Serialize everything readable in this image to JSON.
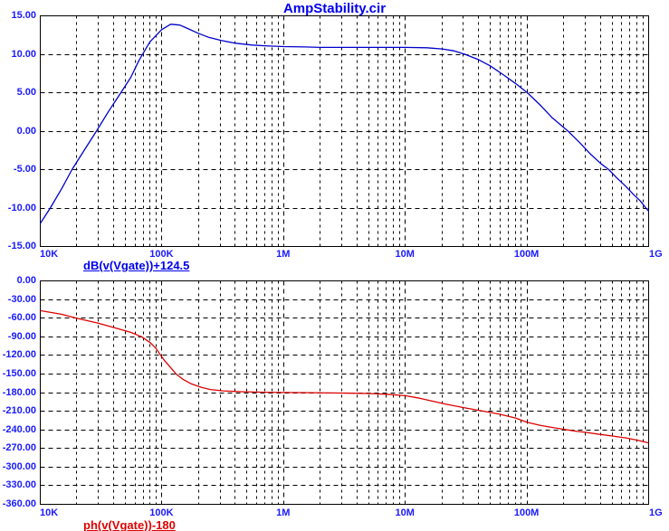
{
  "title": "AmpStability.cir",
  "colors": {
    "title": "#0000ee",
    "tick_label": "#1a1aff",
    "grid": "#000000",
    "plot_border": "#000000",
    "background": "#ffffff",
    "magnitude_trace": "#0000cc",
    "magnitude_label": "#0000ee",
    "phase_trace": "#dd0000",
    "phase_label": "#dd0000"
  },
  "chart_data": [
    {
      "type": "line",
      "name": "magnitude",
      "expression": "dB(v(Vgate))+124.5",
      "x_scale": "log",
      "x_range": [
        10000,
        1000000000
      ],
      "x_ticks": [
        {
          "label": "10K",
          "f": 10000
        },
        {
          "label": "100K",
          "f": 100000
        },
        {
          "label": "1M",
          "f": 1000000
        },
        {
          "label": "10M",
          "f": 10000000
        },
        {
          "label": "100M",
          "f": 100000000
        },
        {
          "label": "1G",
          "f": 1000000000
        }
      ],
      "ylim": [
        -15,
        15
      ],
      "y_ticks": [
        "15.00",
        "10.00",
        "5.00",
        "0.00",
        "-5.00",
        "-10.00",
        "-15.00"
      ],
      "grid": true,
      "legend_position": "below-left",
      "color": "#0000cc",
      "points": [
        [
          10000,
          -12.0
        ],
        [
          12100,
          -10.0
        ],
        [
          15000,
          -7.4
        ],
        [
          18200,
          -5.0
        ],
        [
          23000,
          -2.4
        ],
        [
          28700,
          0.0
        ],
        [
          36000,
          2.5
        ],
        [
          46000,
          5.0
        ],
        [
          55000,
          7.0
        ],
        [
          65000,
          9.2
        ],
        [
          80000,
          11.6
        ],
        [
          100000,
          13.2
        ],
        [
          118000,
          13.9
        ],
        [
          140000,
          13.8
        ],
        [
          160000,
          13.4
        ],
        [
          194000,
          12.8
        ],
        [
          240000,
          12.2
        ],
        [
          310000,
          11.8
        ],
        [
          400000,
          11.45
        ],
        [
          550000,
          11.2
        ],
        [
          700000,
          11.1
        ],
        [
          1000000,
          11.0
        ],
        [
          1500000,
          10.95
        ],
        [
          2000000,
          10.9
        ],
        [
          3000000,
          10.9
        ],
        [
          5000000,
          10.9
        ],
        [
          8000000,
          10.9
        ],
        [
          10000000,
          10.9
        ],
        [
          15000000,
          10.85
        ],
        [
          20000000,
          10.7
        ],
        [
          25000000,
          10.45
        ],
        [
          31000000,
          10.0
        ],
        [
          40000000,
          9.3
        ],
        [
          50000000,
          8.5
        ],
        [
          65000000,
          7.3
        ],
        [
          80000000,
          6.2
        ],
        [
          100000000,
          5.0
        ],
        [
          130000000,
          3.3
        ],
        [
          160000000,
          1.8
        ],
        [
          217000000,
          0.0
        ],
        [
          270000000,
          -1.5
        ],
        [
          330000000,
          -2.9
        ],
        [
          400000000,
          -4.2
        ],
        [
          467000000,
          -5.0
        ],
        [
          550000000,
          -6.1
        ],
        [
          650000000,
          -7.2
        ],
        [
          750000000,
          -8.2
        ],
        [
          850000000,
          -9.1
        ],
        [
          950000000,
          -10.0
        ],
        [
          1000000000,
          -10.4
        ]
      ]
    },
    {
      "type": "line",
      "name": "phase",
      "expression": "ph(v(Vgate))-180",
      "x_scale": "log",
      "x_range": [
        10000,
        1000000000
      ],
      "x_ticks": [
        {
          "label": "10K",
          "f": 10000
        },
        {
          "label": "100K",
          "f": 100000
        },
        {
          "label": "1M",
          "f": 1000000
        },
        {
          "label": "10M",
          "f": 10000000
        },
        {
          "label": "100M",
          "f": 100000000
        },
        {
          "label": "1G",
          "f": 1000000000
        }
      ],
      "ylim": [
        -360,
        0
      ],
      "y_ticks": [
        "0.00",
        "-30.00",
        "-60.00",
        "-90.00",
        "-120.00",
        "-150.00",
        "-180.00",
        "-210.00",
        "-240.00",
        "-270.00",
        "-300.00",
        "-330.00",
        "-360.00"
      ],
      "grid": true,
      "legend_position": "below-left",
      "color": "#dd0000",
      "points": [
        [
          10000,
          -48
        ],
        [
          15000,
          -54
        ],
        [
          20000,
          -60
        ],
        [
          30000,
          -68
        ],
        [
          40000,
          -75
        ],
        [
          55000,
          -83
        ],
        [
          68000,
          -90
        ],
        [
          80000,
          -99
        ],
        [
          90000,
          -109
        ],
        [
          97000,
          -120
        ],
        [
          105000,
          -128
        ],
        [
          115000,
          -138
        ],
        [
          131000,
          -150
        ],
        [
          150000,
          -159
        ],
        [
          175000,
          -166
        ],
        [
          210000,
          -171.5
        ],
        [
          250000,
          -175
        ],
        [
          320000,
          -177.3
        ],
        [
          450000,
          -178.6
        ],
        [
          700000,
          -179.4
        ],
        [
          1000000,
          -179.8
        ],
        [
          1700000,
          -180.2
        ],
        [
          3000000,
          -180.7
        ],
        [
          5000000,
          -181.5
        ],
        [
          7000000,
          -182.6
        ],
        [
          10000000,
          -185
        ],
        [
          13000000,
          -189
        ],
        [
          17000000,
          -194
        ],
        [
          22000000,
          -199
        ],
        [
          30000000,
          -204
        ],
        [
          44000000,
          -210
        ],
        [
          60000000,
          -215
        ],
        [
          80000000,
          -221
        ],
        [
          100000000,
          -228
        ],
        [
          130000000,
          -233
        ],
        [
          170000000,
          -237
        ],
        [
          200000000,
          -239
        ],
        [
          260000000,
          -242.5
        ],
        [
          300000000,
          -244
        ],
        [
          400000000,
          -247.5
        ],
        [
          500000000,
          -250
        ],
        [
          650000000,
          -253
        ],
        [
          800000000,
          -256.5
        ],
        [
          1000000000,
          -261
        ]
      ]
    }
  ]
}
